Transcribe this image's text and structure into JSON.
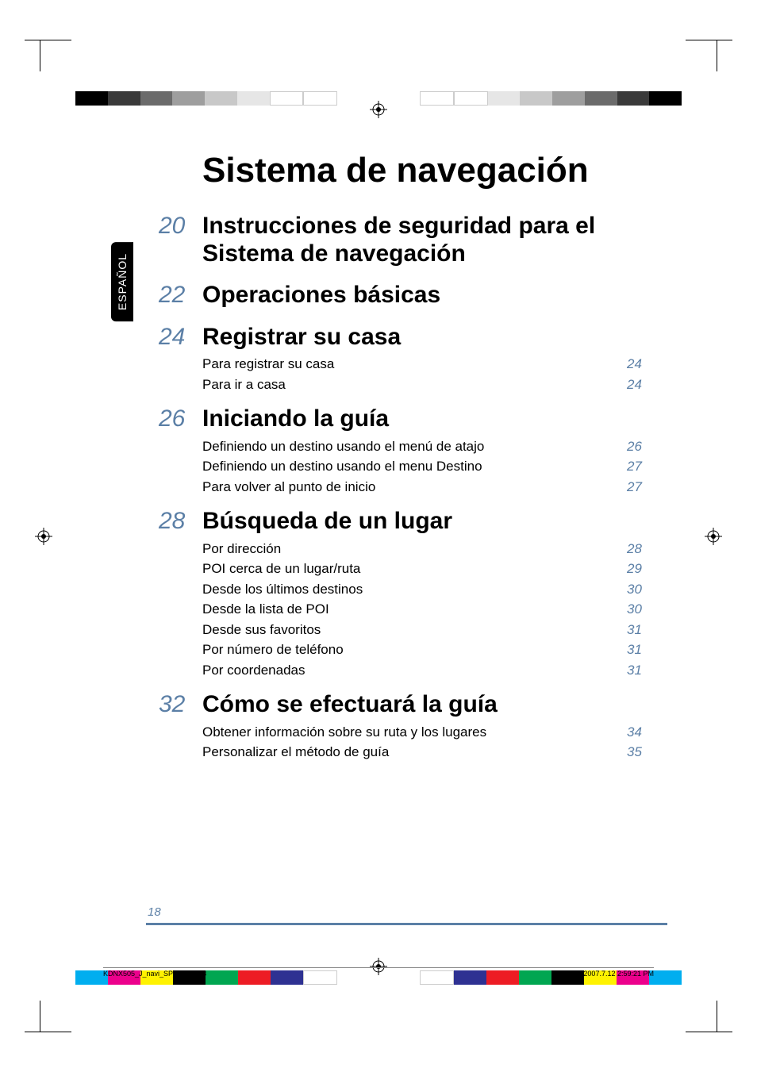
{
  "side_tab": "ESPAÑOL",
  "main_title": "Sistema de navegación",
  "sections": [
    {
      "page": "20",
      "title": "Instrucciones de seguridad para el Sistema de navegación",
      "items": []
    },
    {
      "page": "22",
      "title": "Operaciones básicas",
      "items": []
    },
    {
      "page": "24",
      "title": "Registrar su casa",
      "items": [
        {
          "label": "Para registrar su casa",
          "pg": "24"
        },
        {
          "label": "Para ir a casa",
          "pg": "24"
        }
      ]
    },
    {
      "page": "26",
      "title": "Iniciando la guía",
      "items": [
        {
          "label": "Definiendo un destino usando el menú de atajo",
          "pg": "26"
        },
        {
          "label": "Definiendo un destino usando el menu Destino",
          "pg": "27"
        },
        {
          "label": "Para volver al punto de inicio",
          "pg": "27"
        }
      ]
    },
    {
      "page": "28",
      "title": "Búsqueda de un lugar",
      "items": [
        {
          "label": "Por dirección",
          "pg": "28"
        },
        {
          "label": "POI cerca de un lugar/ruta",
          "pg": "29"
        },
        {
          "label": "Desde los últimos destinos",
          "pg": "30"
        },
        {
          "label": "Desde la lista de POI",
          "pg": "30"
        },
        {
          "label": "Desde sus favoritos",
          "pg": "31"
        },
        {
          "label": "Por número de teléfono",
          "pg": "31"
        },
        {
          "label": "Por coordenadas",
          "pg": "31"
        }
      ]
    },
    {
      "page": "32",
      "title": "Cómo se efectuará la guía",
      "items": [
        {
          "label": "Obtener información sobre su ruta y los lugares",
          "pg": "34"
        },
        {
          "label": "Personalizar el método de guía",
          "pg": "35"
        }
      ]
    }
  ],
  "footer_page": "18",
  "print_file": "KDNX505_J_navi_SP_1.indd   18",
  "print_time": "2007.7.12   2:59:21 PM",
  "colorbar_top_left": [
    "#000000",
    "#3a3a3a",
    "#6b6b6b",
    "#9e9e9e",
    "#c8c8c8",
    "#e6e6e6",
    "#ffffff",
    "#ffffff"
  ],
  "colorbar_top_right": [
    "#000000",
    "#3a3a3a",
    "#6b6b6b",
    "#9e9e9e",
    "#c8c8c8",
    "#e6e6e6",
    "#ffffff",
    "#ffffff"
  ],
  "colorbar_bottom_left": [
    "#00aeef",
    "#ec008c",
    "#fff200",
    "#000000",
    "#00a651",
    "#ed1c24",
    "#2e3192",
    "#ffffff"
  ],
  "colorbar_bottom_right": [
    "#00aeef",
    "#ec008c",
    "#fff200",
    "#000000",
    "#00a651",
    "#ed1c24",
    "#2e3192",
    "#ffffff"
  ],
  "accent_color": "#5b7fa6"
}
